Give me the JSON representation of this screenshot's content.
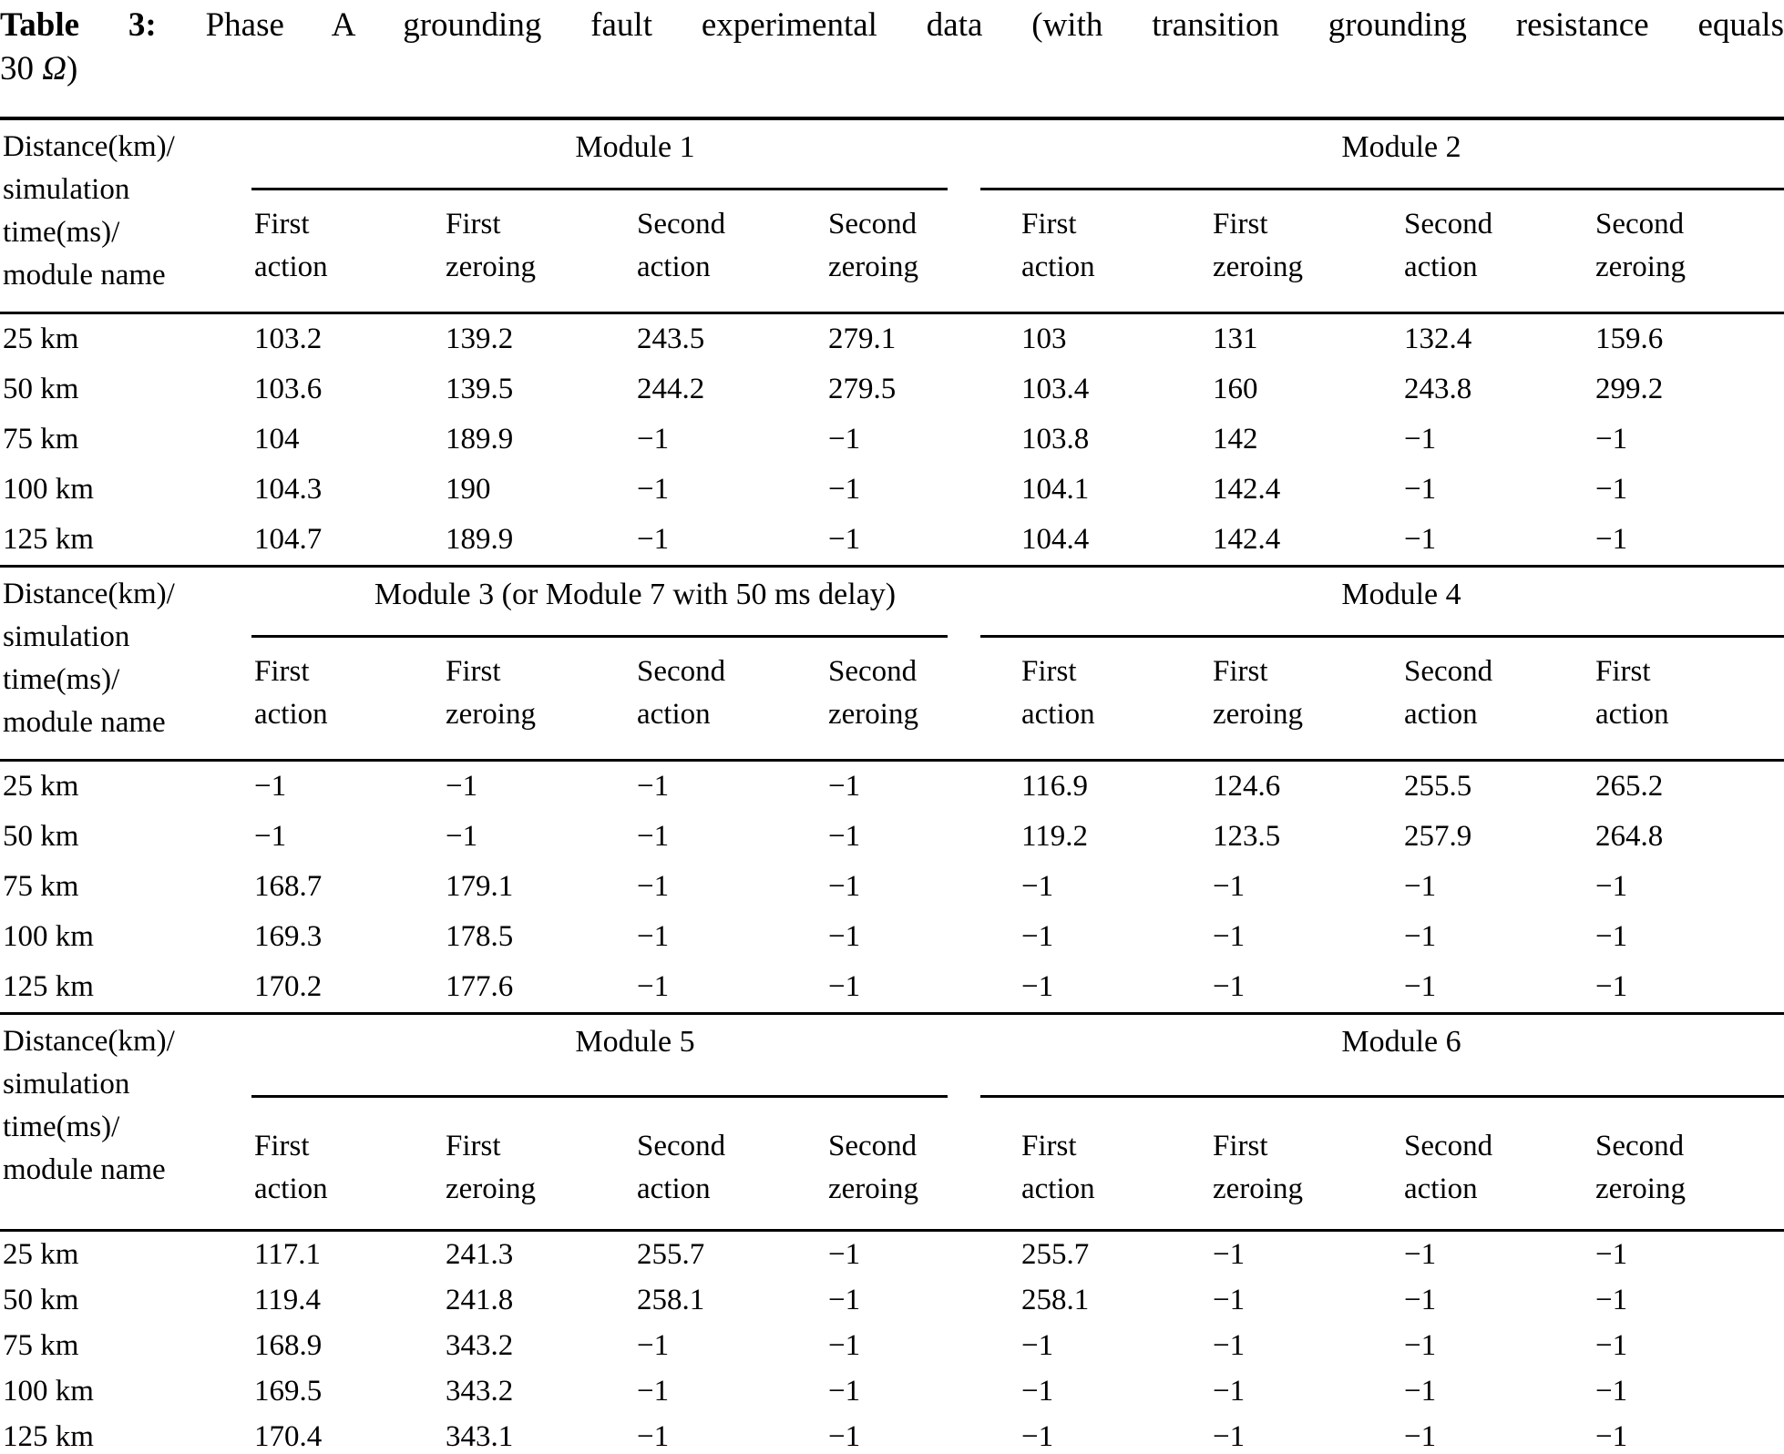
{
  "caption": {
    "label": "Table 3:",
    "line1": " Phase A grounding fault experimental data (with transition grounding resistance equals",
    "line2_pre": "30 ",
    "omega": "Ω",
    "line2_post": ")"
  },
  "table": {
    "stub_header_lines": [
      "Distance(km)/",
      "simulation",
      "time(ms)/",
      "module name"
    ],
    "sections": [
      {
        "groups": [
          {
            "title": "Module 1",
            "columns": [
              [
                "First",
                "action"
              ],
              [
                "First",
                "zeroing"
              ],
              [
                "Second",
                "action"
              ],
              [
                "Second",
                "zeroing"
              ]
            ]
          },
          {
            "title": "Module 2",
            "columns": [
              [
                "First",
                "action"
              ],
              [
                "First",
                "zeroing"
              ],
              [
                "Second",
                "action"
              ],
              [
                "Second",
                "zeroing"
              ]
            ]
          }
        ],
        "rows": [
          {
            "label": "25 km",
            "values": [
              "103.2",
              "139.2",
              "243.5",
              "279.1",
              "103",
              "131",
              "132.4",
              "159.6"
            ]
          },
          {
            "label": "50 km",
            "values": [
              "103.6",
              "139.5",
              "244.2",
              "279.5",
              "103.4",
              "160",
              "243.8",
              "299.2"
            ]
          },
          {
            "label": "75 km",
            "values": [
              "104",
              "189.9",
              "−1",
              "−1",
              "103.8",
              "142",
              "−1",
              "−1"
            ]
          },
          {
            "label": "100 km",
            "values": [
              "104.3",
              "190",
              "−1",
              "−1",
              "104.1",
              "142.4",
              "−1",
              "−1"
            ]
          },
          {
            "label": "125 km",
            "values": [
              "104.7",
              "189.9",
              "−1",
              "−1",
              "104.4",
              "142.4",
              "−1",
              "−1"
            ]
          }
        ]
      },
      {
        "groups": [
          {
            "title": "Module 3 (or Module 7 with 50 ms delay)",
            "columns": [
              [
                "First",
                "action"
              ],
              [
                "First",
                "zeroing"
              ],
              [
                "Second",
                "action"
              ],
              [
                "Second",
                "zeroing"
              ]
            ]
          },
          {
            "title": "Module 4",
            "columns": [
              [
                "First",
                "action"
              ],
              [
                "First",
                "zeroing"
              ],
              [
                "Second",
                "action"
              ],
              [
                "First",
                "action"
              ]
            ]
          }
        ],
        "rows": [
          {
            "label": "25 km",
            "values": [
              "−1",
              "−1",
              "−1",
              "−1",
              "116.9",
              "124.6",
              "255.5",
              "265.2"
            ]
          },
          {
            "label": "50 km",
            "values": [
              "−1",
              "−1",
              "−1",
              "−1",
              "119.2",
              "123.5",
              "257.9",
              "264.8"
            ]
          },
          {
            "label": "75 km",
            "values": [
              "168.7",
              "179.1",
              "−1",
              "−1",
              "−1",
              "−1",
              "−1",
              "−1"
            ]
          },
          {
            "label": "100 km",
            "values": [
              "169.3",
              "178.5",
              "−1",
              "−1",
              "−1",
              "−1",
              "−1",
              "−1"
            ]
          },
          {
            "label": "125 km",
            "values": [
              "170.2",
              "177.6",
              "−1",
              "−1",
              "−1",
              "−1",
              "−1",
              "−1"
            ]
          }
        ]
      },
      {
        "groups": [
          {
            "title": "Module 5",
            "columns": [
              [
                "First",
                "action"
              ],
              [
                "First",
                "zeroing"
              ],
              [
                "Second",
                "action"
              ],
              [
                "Second",
                "zeroing"
              ]
            ]
          },
          {
            "title": "Module 6",
            "columns": [
              [
                "First",
                "action"
              ],
              [
                "First",
                "zeroing"
              ],
              [
                "Second",
                "action"
              ],
              [
                "Second",
                "zeroing"
              ]
            ]
          }
        ],
        "rows": [
          {
            "label": "25 km",
            "values": [
              "117.1",
              "241.3",
              "255.7",
              "−1",
              "255.7",
              "−1",
              "−1",
              "−1"
            ]
          },
          {
            "label": "50 km",
            "values": [
              "119.4",
              "241.8",
              "258.1",
              "−1",
              "258.1",
              "−1",
              "−1",
              "−1"
            ]
          },
          {
            "label": "75 km",
            "values": [
              "168.9",
              "343.2",
              "−1",
              "−1",
              "−1",
              "−1",
              "−1",
              "−1"
            ]
          },
          {
            "label": "100 km",
            "values": [
              "169.5",
              "343.2",
              "−1",
              "−1",
              "−1",
              "−1",
              "−1",
              "−1"
            ]
          },
          {
            "label": "125 km",
            "values": [
              "170.4",
              "343.1",
              "−1",
              "−1",
              "−1",
              "−1",
              "−1",
              "−1"
            ]
          }
        ]
      }
    ]
  }
}
